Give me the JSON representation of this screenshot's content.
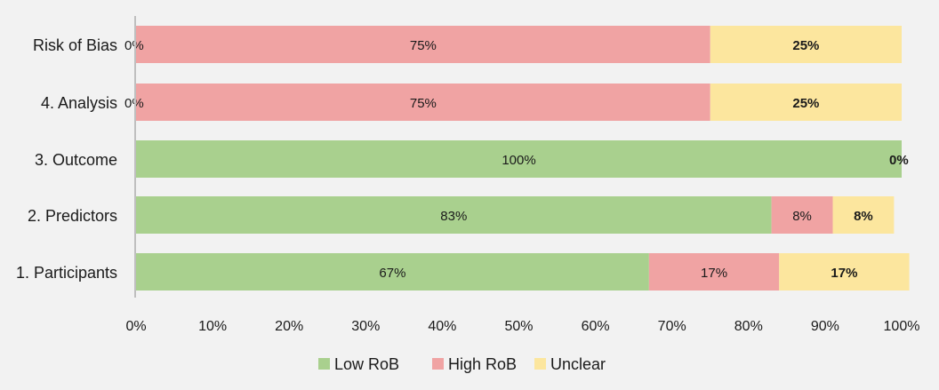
{
  "chart_data": {
    "type": "bar",
    "orientation": "horizontal",
    "stacked": true,
    "normalized": true,
    "categories": [
      "Risk of Bias",
      "4. Analysis",
      "3. Outcome",
      "2. Predictors",
      "1. Participants"
    ],
    "series": [
      {
        "name": "Low RoB",
        "color": "#a9d08e",
        "values": [
          0,
          0,
          100,
          83,
          67
        ],
        "labels": [
          "0%",
          "0%",
          "100%",
          "83%",
          "67%"
        ]
      },
      {
        "name": "High RoB",
        "color": "#f0a3a3",
        "values": [
          75,
          75,
          0,
          8,
          17
        ],
        "labels": [
          "75%",
          "75%",
          "",
          "8%",
          "17%"
        ]
      },
      {
        "name": "Unclear",
        "color": "#fce69e",
        "values": [
          25,
          25,
          0,
          8,
          17
        ],
        "labels": [
          "25%",
          "25%",
          "0%",
          "8%",
          "17%"
        ]
      }
    ],
    "xlim": [
      0,
      100
    ],
    "xticks": [
      "0%",
      "10%",
      "20%",
      "30%",
      "40%",
      "50%",
      "60%",
      "70%",
      "80%",
      "90%",
      "100%"
    ],
    "grid": false,
    "legend_position": "bottom",
    "title": "",
    "xlabel": "",
    "ylabel": ""
  },
  "colors": {
    "background": "#f2f2f2",
    "axis": "#bfbfbf",
    "text": "#1a1a1a"
  }
}
